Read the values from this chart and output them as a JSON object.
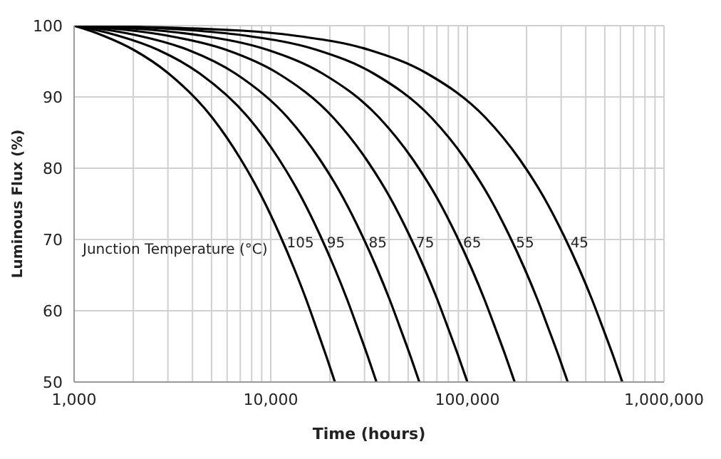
{
  "chart_data": {
    "type": "line",
    "xlabel": "Time (hours)",
    "ylabel": "Luminous Flux (%)",
    "log": "x",
    "grid": true,
    "legend": false,
    "marker": "none",
    "line_style": "solid",
    "xlim": [
      1000,
      1000000
    ],
    "ylim": [
      50,
      100
    ],
    "xticks": [
      {
        "value": 1000,
        "label": "1,000"
      },
      {
        "value": 2000,
        "label": null
      },
      {
        "value": 3000,
        "label": null
      },
      {
        "value": 4000,
        "label": null
      },
      {
        "value": 5000,
        "label": null
      },
      {
        "value": 6000,
        "label": null
      },
      {
        "value": 7000,
        "label": null
      },
      {
        "value": 8000,
        "label": null
      },
      {
        "value": 9000,
        "label": null
      },
      {
        "value": 10000,
        "label": "10,000"
      },
      {
        "value": 20000,
        "label": null
      },
      {
        "value": 30000,
        "label": null
      },
      {
        "value": 40000,
        "label": null
      },
      {
        "value": 50000,
        "label": null
      },
      {
        "value": 60000,
        "label": null
      },
      {
        "value": 70000,
        "label": null
      },
      {
        "value": 80000,
        "label": null
      },
      {
        "value": 90000,
        "label": null
      },
      {
        "value": 100000,
        "label": "100,000"
      },
      {
        "value": 200000,
        "label": null
      },
      {
        "value": 300000,
        "label": null
      },
      {
        "value": 400000,
        "label": null
      },
      {
        "value": 500000,
        "label": null
      },
      {
        "value": 600000,
        "label": null
      },
      {
        "value": 700000,
        "label": null
      },
      {
        "value": 800000,
        "label": null
      },
      {
        "value": 900000,
        "label": null
      },
      {
        "value": 1000000,
        "label": "1,000,000"
      }
    ],
    "yticks": [
      50,
      60,
      70,
      80,
      90,
      100
    ],
    "annotations": [
      "Junction Temperature (°C)"
    ],
    "series": [
      {
        "name": "105",
        "color": "#000000",
        "x": [
          1000,
          1202,
          1404,
          2010,
          3020,
          5040,
          7060,
          9080,
          11100,
          13120,
          15140,
          17160,
          19180,
          21200
        ],
        "values": [
          100,
          99.3,
          98.6,
          96.6,
          93.3,
          87.1,
          81.2,
          75.8,
          70.7,
          66.0,
          61.6,
          57.4,
          53.6,
          50
        ]
      },
      {
        "name": "95",
        "color": "#000000",
        "x": [
          1000,
          1335,
          1670,
          2675,
          4350,
          7700,
          11050,
          14400,
          17750,
          21100,
          24450,
          27800,
          31150,
          34500
        ],
        "values": [
          100,
          99.3,
          98.6,
          96.6,
          93.3,
          87.1,
          81.2,
          75.8,
          70.7,
          66.0,
          61.6,
          57.4,
          53.6,
          50
        ]
      },
      {
        "name": "85",
        "color": "#000000",
        "x": [
          1000,
          1560,
          2120,
          3800,
          6600,
          12200,
          17800,
          23400,
          29000,
          34600,
          40200,
          45800,
          51400,
          57000
        ],
        "values": [
          100,
          99.3,
          98.6,
          96.6,
          93.3,
          87.1,
          81.2,
          75.8,
          70.7,
          66.0,
          61.6,
          57.4,
          53.6,
          50
        ]
      },
      {
        "name": "75",
        "color": "#000000",
        "x": [
          1000,
          1990,
          2980,
          5950,
          10900,
          20800,
          30700,
          40600,
          50500,
          60400,
          70300,
          80200,
          90100,
          100000
        ],
        "values": [
          100,
          99.3,
          98.6,
          96.6,
          93.3,
          87.1,
          81.2,
          75.8,
          70.7,
          66.0,
          61.6,
          57.4,
          53.6,
          50
        ]
      },
      {
        "name": "65",
        "color": "#000000",
        "x": [
          1000,
          2730,
          4460,
          9650,
          18300,
          35600,
          52900,
          70200,
          87500,
          104800,
          122100,
          139400,
          156700,
          174000
        ],
        "values": [
          100,
          99.3,
          98.6,
          96.6,
          93.3,
          87.1,
          81.2,
          75.8,
          70.7,
          66.0,
          61.6,
          57.4,
          53.6,
          50
        ]
      },
      {
        "name": "55",
        "color": "#000000",
        "x": [
          1000,
          4230,
          7460,
          17150,
          33300,
          65600,
          97900,
          130200,
          162500,
          194800,
          227100,
          259400,
          291700,
          324000
        ],
        "values": [
          100,
          99.3,
          98.6,
          96.6,
          93.3,
          87.1,
          81.2,
          75.8,
          70.7,
          66.0,
          61.6,
          57.4,
          53.6,
          50
        ]
      },
      {
        "name": "45",
        "color": "#000000",
        "x": [
          1000,
          7130,
          13260,
          31650,
          62300,
          123600,
          184900,
          246200,
          307500,
          368800,
          430100,
          491400,
          552700,
          614000
        ],
        "values": [
          100,
          99.3,
          98.6,
          96.6,
          93.3,
          87.1,
          81.2,
          75.8,
          70.7,
          66.0,
          61.6,
          57.4,
          53.6,
          50
        ]
      }
    ]
  }
}
